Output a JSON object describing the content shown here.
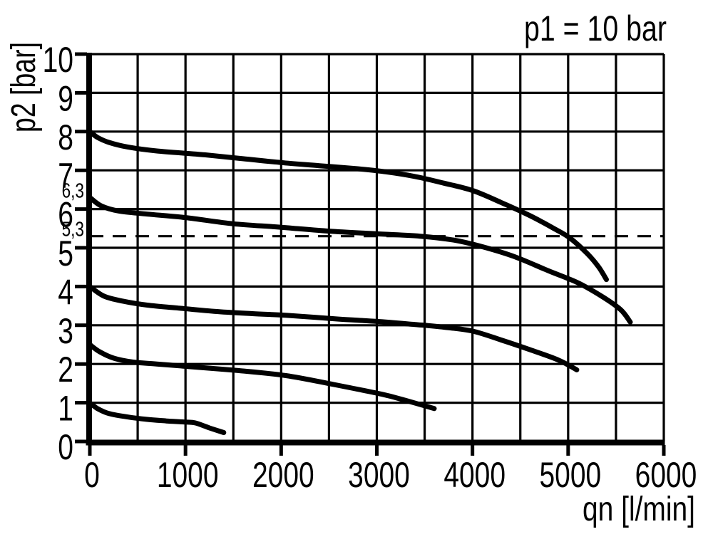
{
  "chart_data": {
    "type": "line",
    "title": "p1 = 10 bar",
    "xlabel": "qn [l/min]",
    "ylabel": "p2 [bar]",
    "xlim": [
      0,
      6000
    ],
    "ylim": [
      0,
      10
    ],
    "grid": true,
    "legend": "none",
    "line_color": "#000000",
    "background_color": "#ffffff",
    "x_grid_step": 500,
    "y_grid_step": 1,
    "x_tick_step": 1000,
    "x_tick_labels": [
      "0",
      "1000",
      "2000",
      "3000",
      "4000",
      "5000",
      "6000"
    ],
    "y_tick_labels": [
      "0",
      "1",
      "2",
      "3",
      "4",
      "5",
      "6",
      "7",
      "8",
      "9",
      "10"
    ],
    "special_y_labels": [
      {
        "label": "6,3",
        "value": 6.3
      },
      {
        "label": "5,3",
        "value": 5.3
      }
    ],
    "reference_lines": [
      {
        "y": 5.3,
        "style": "dashed"
      }
    ],
    "series": [
      {
        "set_pressure_bar": 8.0,
        "points": [
          [
            0,
            8.0
          ],
          [
            80,
            7.85
          ],
          [
            200,
            7.72
          ],
          [
            400,
            7.6
          ],
          [
            700,
            7.5
          ],
          [
            1200,
            7.4
          ],
          [
            1600,
            7.3
          ],
          [
            2000,
            7.2
          ],
          [
            2400,
            7.12
          ],
          [
            2800,
            7.04
          ],
          [
            3100,
            6.96
          ],
          [
            3400,
            6.84
          ],
          [
            3700,
            6.67
          ],
          [
            4000,
            6.48
          ],
          [
            4300,
            6.17
          ],
          [
            4600,
            5.83
          ],
          [
            4850,
            5.5
          ],
          [
            5020,
            5.25
          ],
          [
            5200,
            4.85
          ],
          [
            5320,
            4.5
          ],
          [
            5400,
            4.18
          ]
        ]
      },
      {
        "set_pressure_bar": 6.3,
        "points": [
          [
            0,
            6.3
          ],
          [
            120,
            6.08
          ],
          [
            300,
            5.95
          ],
          [
            600,
            5.87
          ],
          [
            1000,
            5.78
          ],
          [
            1500,
            5.62
          ],
          [
            2000,
            5.53
          ],
          [
            2500,
            5.43
          ],
          [
            3000,
            5.36
          ],
          [
            3450,
            5.3
          ],
          [
            3800,
            5.2
          ],
          [
            4100,
            5.03
          ],
          [
            4440,
            4.77
          ],
          [
            4800,
            4.4
          ],
          [
            5100,
            4.1
          ],
          [
            5350,
            3.75
          ],
          [
            5550,
            3.4
          ],
          [
            5650,
            3.08
          ]
        ]
      },
      {
        "set_pressure_bar": 4.0,
        "points": [
          [
            0,
            4.0
          ],
          [
            150,
            3.75
          ],
          [
            350,
            3.62
          ],
          [
            600,
            3.52
          ],
          [
            900,
            3.45
          ],
          [
            1300,
            3.36
          ],
          [
            1700,
            3.3
          ],
          [
            2100,
            3.25
          ],
          [
            2600,
            3.16
          ],
          [
            3000,
            3.1
          ],
          [
            3400,
            3.02
          ],
          [
            3700,
            2.95
          ],
          [
            4000,
            2.85
          ],
          [
            4300,
            2.62
          ],
          [
            4600,
            2.37
          ],
          [
            4900,
            2.1
          ],
          [
            5090,
            1.85
          ]
        ]
      },
      {
        "set_pressure_bar": 2.5,
        "points": [
          [
            0,
            2.5
          ],
          [
            100,
            2.32
          ],
          [
            250,
            2.15
          ],
          [
            450,
            2.05
          ],
          [
            700,
            2.0
          ],
          [
            1050,
            1.93
          ],
          [
            1550,
            1.83
          ],
          [
            2050,
            1.7
          ],
          [
            2550,
            1.47
          ],
          [
            3050,
            1.22
          ],
          [
            3300,
            1.06
          ],
          [
            3600,
            0.85
          ]
        ]
      },
      {
        "set_pressure_bar": 1.0,
        "points": [
          [
            0,
            1.0
          ],
          [
            80,
            0.85
          ],
          [
            200,
            0.72
          ],
          [
            400,
            0.63
          ],
          [
            600,
            0.57
          ],
          [
            800,
            0.53
          ],
          [
            1000,
            0.5
          ],
          [
            1100,
            0.48
          ],
          [
            1250,
            0.35
          ],
          [
            1400,
            0.23
          ]
        ]
      }
    ]
  }
}
